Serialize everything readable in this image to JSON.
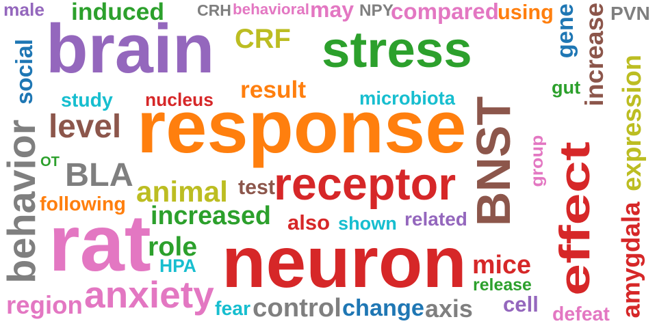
{
  "colors": {
    "purple": "#9467bd",
    "orange": "#ff7f0e",
    "green": "#2ca02c",
    "red": "#d62728",
    "pink": "#e377c2",
    "olive": "#bcbd22",
    "gray": "#7f7f7f",
    "blue": "#1f77b4",
    "cyan": "#17becf",
    "brown": "#8c564b"
  },
  "words": [
    {
      "text": "male",
      "color": "purple"
    },
    {
      "text": "induced",
      "color": "green"
    },
    {
      "text": "CRH",
      "color": "gray"
    },
    {
      "text": "behavioral",
      "color": "pink"
    },
    {
      "text": "may",
      "color": "pink"
    },
    {
      "text": "NPY",
      "color": "gray"
    },
    {
      "text": "compared",
      "color": "pink"
    },
    {
      "text": "using",
      "color": "orange"
    },
    {
      "text": "PVN",
      "color": "gray"
    },
    {
      "text": "brain",
      "color": "purple"
    },
    {
      "text": "CRF",
      "color": "olive"
    },
    {
      "text": "stress",
      "color": "green"
    },
    {
      "text": "gene",
      "color": "blue"
    },
    {
      "text": "increase",
      "color": "brown"
    },
    {
      "text": "expression",
      "color": "olive"
    },
    {
      "text": "social",
      "color": "blue"
    },
    {
      "text": "study",
      "color": "cyan"
    },
    {
      "text": "nucleus",
      "color": "red"
    },
    {
      "text": "result",
      "color": "orange"
    },
    {
      "text": "microbiota",
      "color": "cyan"
    },
    {
      "text": "gut",
      "color": "green"
    },
    {
      "text": "behavior",
      "color": "gray"
    },
    {
      "text": "level",
      "color": "brown"
    },
    {
      "text": "response",
      "color": "orange"
    },
    {
      "text": "BNST",
      "color": "brown"
    },
    {
      "text": "group",
      "color": "pink"
    },
    {
      "text": "effect",
      "color": "red"
    },
    {
      "text": "OT",
      "color": "green"
    },
    {
      "text": "BLA",
      "color": "gray"
    },
    {
      "text": "animal",
      "color": "olive"
    },
    {
      "text": "test",
      "color": "brown"
    },
    {
      "text": "receptor",
      "color": "red"
    },
    {
      "text": "following",
      "color": "orange"
    },
    {
      "text": "rat",
      "color": "pink"
    },
    {
      "text": "increased",
      "color": "green"
    },
    {
      "text": "also",
      "color": "red"
    },
    {
      "text": "shown",
      "color": "cyan"
    },
    {
      "text": "related",
      "color": "purple"
    },
    {
      "text": "amygdala",
      "color": "red"
    },
    {
      "text": "role",
      "color": "green"
    },
    {
      "text": "neuron",
      "color": "red"
    },
    {
      "text": "mice",
      "color": "red"
    },
    {
      "text": "HPA",
      "color": "cyan"
    },
    {
      "text": "release",
      "color": "green"
    },
    {
      "text": "anxiety",
      "color": "pink"
    },
    {
      "text": "region",
      "color": "pink"
    },
    {
      "text": "fear",
      "color": "cyan"
    },
    {
      "text": "control",
      "color": "gray"
    },
    {
      "text": "change",
      "color": "blue"
    },
    {
      "text": "axis",
      "color": "gray"
    },
    {
      "text": "cell",
      "color": "purple"
    },
    {
      "text": "defeat",
      "color": "pink"
    }
  ]
}
